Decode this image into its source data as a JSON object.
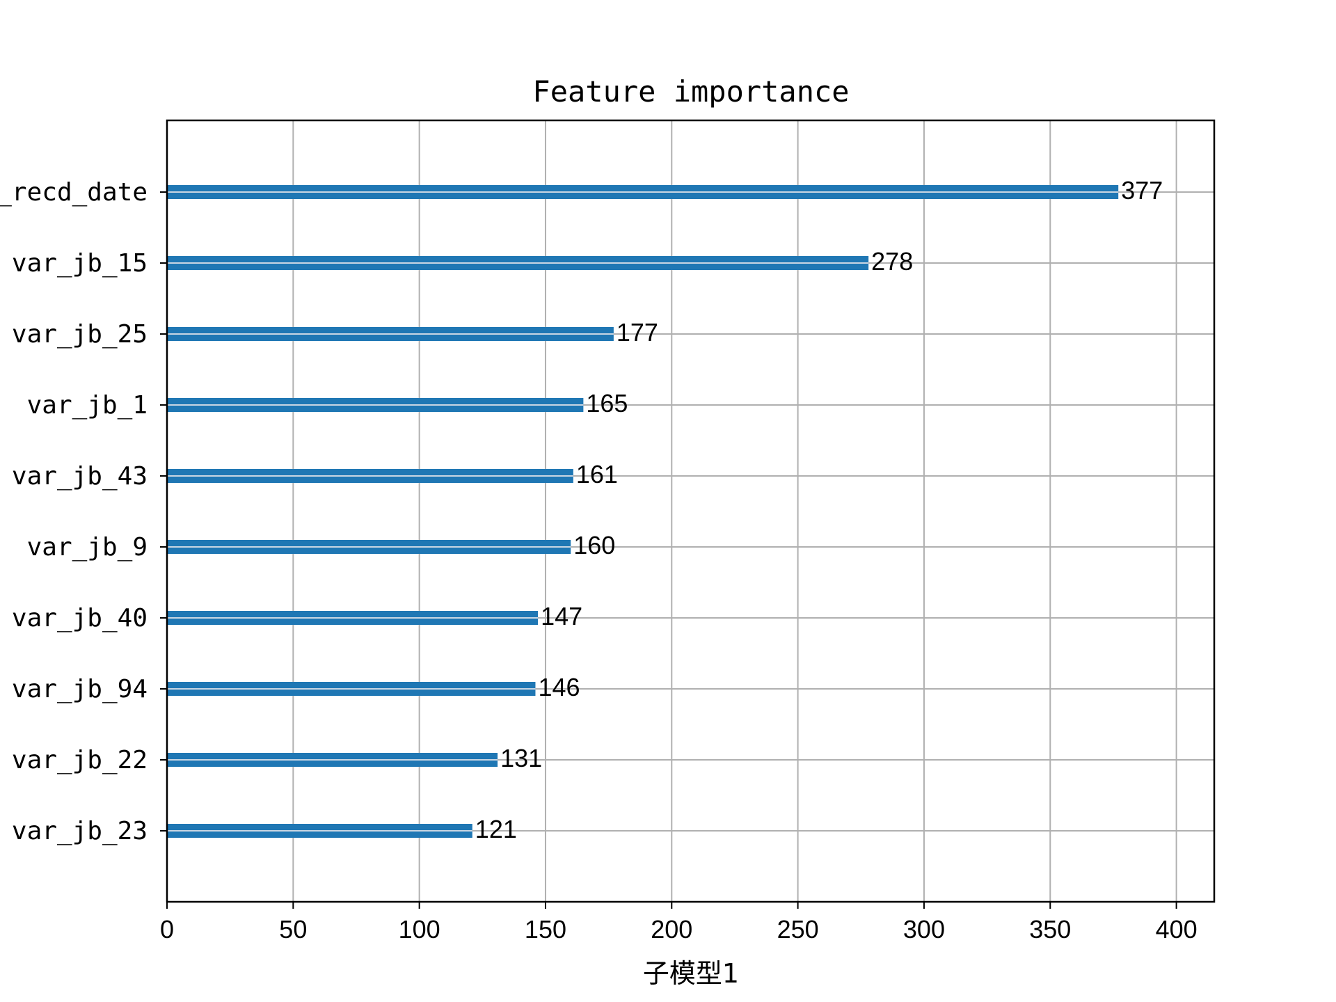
{
  "chart_data": {
    "type": "bar",
    "orientation": "horizontal",
    "title": "Feature importance",
    "xlabel": "子模型1",
    "ylabel": "",
    "categories": [
      "_recd_date",
      "var_jb_15",
      "var_jb_25",
      "var_jb_1",
      "var_jb_43",
      "var_jb_9",
      "var_jb_40",
      "var_jb_94",
      "var_jb_22",
      "var_jb_23"
    ],
    "values": [
      377,
      278,
      177,
      165,
      161,
      160,
      147,
      146,
      131,
      121
    ],
    "xlim": [
      0,
      415
    ],
    "xticks": [
      0,
      50,
      100,
      150,
      200,
      250,
      300,
      350,
      400
    ],
    "grid": true,
    "bar_color": "#1f77b4",
    "grid_color": "#b0b0b0"
  }
}
